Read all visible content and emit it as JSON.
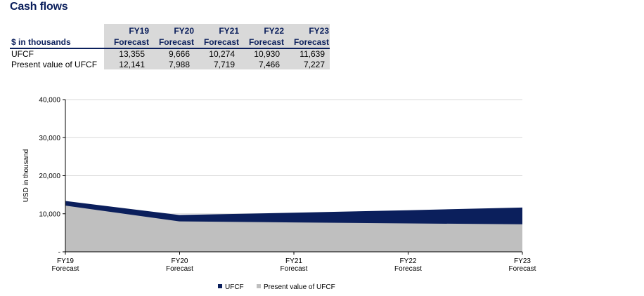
{
  "title": "Cash flows",
  "table": {
    "units_label": "$ in thousands",
    "columns": [
      {
        "line1": "FY19",
        "line2": "Forecast"
      },
      {
        "line1": "FY20",
        "line2": "Forecast"
      },
      {
        "line1": "FY21",
        "line2": "Forecast"
      },
      {
        "line1": "FY22",
        "line2": "Forecast"
      },
      {
        "line1": "FY23",
        "line2": "Forecast"
      }
    ],
    "rows": [
      {
        "label": "UFCF",
        "values": [
          "13,355",
          "9,666",
          "10,274",
          "10,930",
          "11,639"
        ]
      },
      {
        "label": "Present value of UFCF",
        "values": [
          "12,141",
          "7,988",
          "7,719",
          "7,466",
          "7,227"
        ]
      }
    ]
  },
  "chart_data": {
    "type": "area",
    "categories": [
      "FY19 Forecast",
      "FY20 Forecast",
      "FY21 Forecast",
      "FY22 Forecast",
      "FY23 Forecast"
    ],
    "category_lines": [
      [
        "FY19",
        "Forecast"
      ],
      [
        "FY20",
        "Forecast"
      ],
      [
        "FY21",
        "Forecast"
      ],
      [
        "FY22",
        "Forecast"
      ],
      [
        "FY23",
        "Forecast"
      ]
    ],
    "series": [
      {
        "name": "UFCF",
        "values": [
          13355,
          9666,
          10274,
          10930,
          11639
        ],
        "color": "#0b1f5c"
      },
      {
        "name": "Present value of UFCF",
        "values": [
          12141,
          7988,
          7719,
          7466,
          7227
        ],
        "color": "#bfbfbf"
      }
    ],
    "ylabel": "USD in thousand",
    "ylim": [
      0,
      40000
    ],
    "yticks": [
      0,
      10000,
      20000,
      30000,
      40000
    ],
    "ytick_labels": [
      "-",
      "10,000",
      "20,000",
      "30,000",
      "40,000"
    ],
    "grid": true,
    "legend": "bottom-center"
  }
}
